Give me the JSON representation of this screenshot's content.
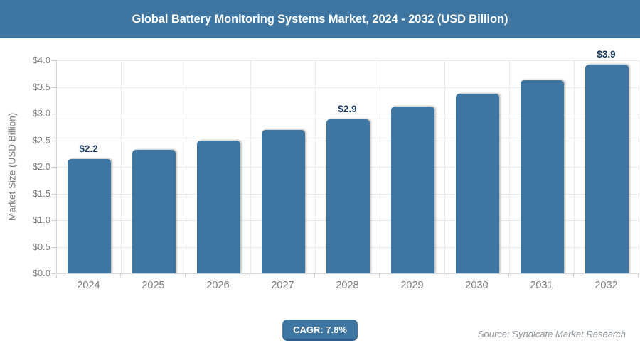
{
  "header": {
    "title": "Global Battery Monitoring Systems Market, 2024 - 2032 (USD Billion)"
  },
  "chart_data": {
    "type": "bar",
    "title": "Global Battery Monitoring Systems Market, 2024 - 2032 (USD Billion)",
    "categories": [
      "2024",
      "2025",
      "2026",
      "2027",
      "2028",
      "2029",
      "2030",
      "2031",
      "2032"
    ],
    "values": [
      2.15,
      2.32,
      2.5,
      2.69,
      2.9,
      3.13,
      3.37,
      3.63,
      3.92
    ],
    "data_labels": [
      "$2.2",
      "",
      "",
      "",
      "$2.9",
      "",
      "",
      "",
      "$3.9"
    ],
    "xlabel": "",
    "ylabel": "Market Size (USD Billion)",
    "ylim": [
      0,
      4
    ],
    "ytick_step": 0.5,
    "ytick_labels": [
      "$0.0",
      "$0.5",
      "$1.0",
      "$1.5",
      "$2.0",
      "$2.5",
      "$3.0",
      "$3.5",
      "$4.0"
    ],
    "grid": true,
    "legend": false,
    "bar_color": "#3e75a1",
    "label_color": "#1b3a5f"
  },
  "footer": {
    "cagr_label": "CAGR: 7.8%",
    "source": "Source: Syndicate Market Research"
  },
  "colors": {
    "accent_blue": "#3e75a1",
    "badge_border": "#2e5f8c",
    "axis_text": "#7e7e7e",
    "gridline": "#e7e7e7",
    "data_label": "#1b3a5f",
    "source_text": "#8d959c"
  }
}
